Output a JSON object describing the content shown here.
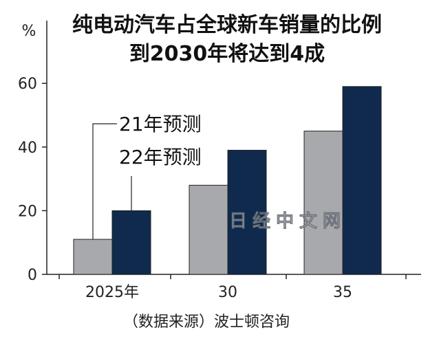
{
  "chart_data": {
    "type": "bar",
    "title": "纯电动汽车占全球新车销量的比例",
    "subtitle": "到2030年将达到4成",
    "ylabel": "%",
    "ylim": [
      0,
      70
    ],
    "yticks": [
      0,
      20,
      40,
      60
    ],
    "grid": false,
    "categories": [
      "2025年",
      "30",
      "35"
    ],
    "series": [
      {
        "name": "21年预测",
        "color": "#a8a9ad",
        "values": [
          11,
          28,
          45
        ]
      },
      {
        "name": "22年预测",
        "color": "#0f2a4d",
        "values": [
          20,
          39,
          59
        ]
      }
    ],
    "legend_placement": "top-left",
    "source": "（数据来源）波士顿咨询",
    "watermark": "日经中文网"
  }
}
